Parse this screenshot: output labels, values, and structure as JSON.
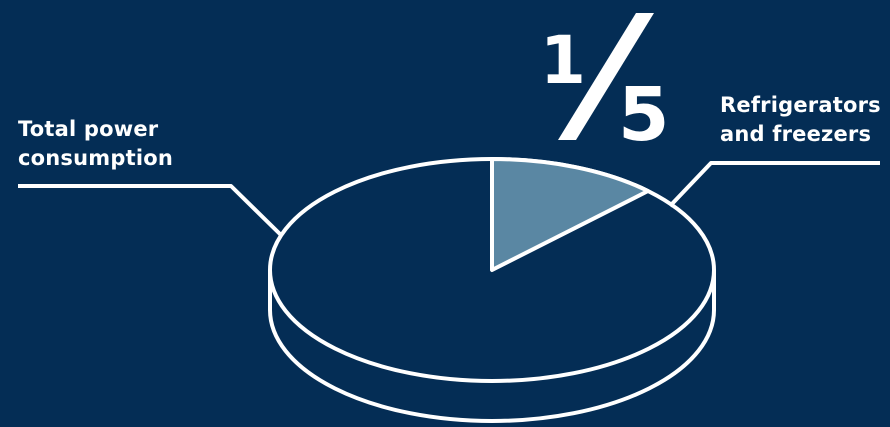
{
  "chart_data": {
    "type": "pie",
    "style": "3d-disc",
    "slices": [
      {
        "label": "Refrigerators and freezers",
        "fraction": 0.2,
        "color": "#5a87a3"
      },
      {
        "label": "Total power consumption",
        "fraction": 0.8,
        "color": "#042d55"
      }
    ],
    "fraction_display": {
      "numerator": "1",
      "denominator": "5"
    }
  },
  "labels": {
    "total_line1": "Total power",
    "total_line2": "consumption",
    "fridge_line1": "Refrigerators",
    "fridge_line2": "and freezers"
  },
  "colors": {
    "background": "#042d55",
    "outline": "#ffffff",
    "highlight": "#5a87a3"
  }
}
